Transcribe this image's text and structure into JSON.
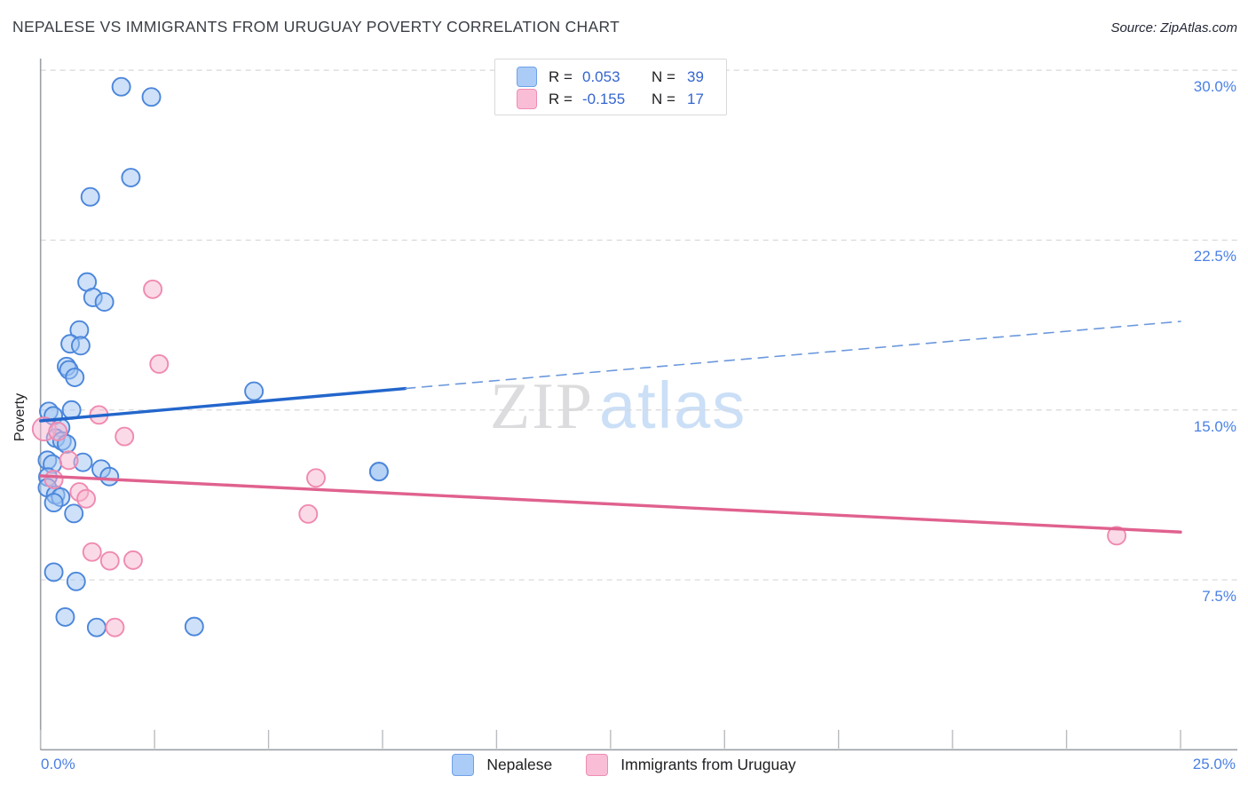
{
  "title": "NEPALESE VS IMMIGRANTS FROM URUGUAY POVERTY CORRELATION CHART",
  "source": "Source: ZipAtlas.com",
  "ylabel": "Poverty",
  "watermark": {
    "zip": "ZIP",
    "atlas": "atlas"
  },
  "legend_box": {
    "rows": [
      {
        "series": "Nepalese",
        "r_label": "R =",
        "r_value": "0.053",
        "n_label": "N =",
        "n_value": "39"
      },
      {
        "series": "Immigrants from Uruguay",
        "r_label": "R =",
        "r_value": "-0.155",
        "n_label": "N =",
        "n_value": "17"
      }
    ]
  },
  "bottom_legend": [
    {
      "label": "Nepalese"
    },
    {
      "label": "Immigrants from Uruguay"
    }
  ],
  "axes": {
    "x_min_label": "0.0%",
    "x_max_label": "25.0%",
    "y_ticks": [
      {
        "value": 30.0,
        "label": "30.0%"
      },
      {
        "value": 22.5,
        "label": "22.5%"
      },
      {
        "value": 15.0,
        "label": "15.0%"
      },
      {
        "value": 7.5,
        "label": "7.5%"
      }
    ],
    "x_tick_values": [
      0,
      2.5,
      5,
      7.5,
      10,
      12.5,
      15,
      17.5,
      20,
      22.5,
      25
    ]
  },
  "colors": {
    "axis_label": "#4a80e4",
    "legend_value": "#3465cf",
    "blue_fill": "#9ec4f2",
    "blue_stroke": "#4b86db",
    "pink_fill": "#f7b6cf",
    "pink_stroke": "#ef8ab0",
    "trend_blue": "#2366cc",
    "trend_pink": "#e0618e",
    "gridline": "#d7d7d9",
    "axis_line": "#9aa0a6",
    "tick_mark": "#b9bcbf"
  },
  "chart_data": {
    "type": "scatter",
    "title": "NEPALESE VS IMMIGRANTS FROM URUGUAY POVERTY CORRELATION CHART",
    "xlabel": "",
    "ylabel": "Poverty",
    "xlim": [
      0,
      25
    ],
    "ylim": [
      0,
      31.2
    ],
    "grid": "horizontal-dashed",
    "legend_position": "bottom-center",
    "series": [
      {
        "name": "Nepalese",
        "R": 0.053,
        "N": 39,
        "points": [
          [
            1.77,
            29.27
          ],
          [
            2.43,
            28.82
          ],
          [
            1.98,
            25.26
          ],
          [
            1.09,
            24.41
          ],
          [
            1.02,
            20.65
          ],
          [
            1.15,
            19.97
          ],
          [
            1.4,
            19.77
          ],
          [
            0.85,
            18.53
          ],
          [
            0.65,
            17.92
          ],
          [
            0.88,
            17.84
          ],
          [
            0.57,
            16.92
          ],
          [
            0.62,
            16.77
          ],
          [
            0.75,
            16.44
          ],
          [
            4.68,
            15.83
          ],
          [
            0.18,
            14.94
          ],
          [
            0.68,
            15.0
          ],
          [
            0.28,
            14.74
          ],
          [
            0.44,
            14.22
          ],
          [
            0.33,
            13.76
          ],
          [
            0.47,
            13.63
          ],
          [
            0.57,
            13.5
          ],
          [
            0.15,
            12.78
          ],
          [
            0.26,
            12.61
          ],
          [
            0.93,
            12.69
          ],
          [
            1.33,
            12.39
          ],
          [
            1.51,
            12.06
          ],
          [
            0.16,
            12.04
          ],
          [
            0.15,
            11.57
          ],
          [
            0.33,
            11.25
          ],
          [
            0.44,
            11.15
          ],
          [
            0.29,
            10.91
          ],
          [
            0.73,
            10.43
          ],
          [
            7.42,
            12.28
          ],
          [
            7.42,
            12.28
          ],
          [
            0.29,
            7.84
          ],
          [
            0.78,
            7.43
          ],
          [
            0.54,
            5.86
          ],
          [
            1.23,
            5.4
          ],
          [
            3.37,
            5.44
          ]
        ]
      },
      {
        "name": "Immigrants from Uruguay",
        "R": -0.155,
        "N": 17,
        "points": [
          [
            2.46,
            20.33
          ],
          [
            2.6,
            17.03
          ],
          [
            1.28,
            14.78
          ],
          [
            0.08,
            14.16,
            13
          ],
          [
            0.38,
            14.05
          ],
          [
            1.84,
            13.83
          ],
          [
            0.62,
            12.78
          ],
          [
            0.29,
            11.93
          ],
          [
            0.85,
            11.38
          ],
          [
            1.0,
            11.08
          ],
          [
            6.04,
            12.0
          ],
          [
            5.87,
            10.41
          ],
          [
            1.13,
            8.73
          ],
          [
            1.52,
            8.34
          ],
          [
            2.03,
            8.37
          ],
          [
            1.63,
            5.4
          ],
          [
            23.6,
            9.45
          ]
        ]
      }
    ],
    "trend_lines": [
      {
        "series": "Nepalese",
        "style": "solid",
        "x1": 0,
        "y1": 14.52,
        "x2": 8,
        "y2": 15.95
      },
      {
        "series": "Nepalese",
        "style": "dashed",
        "x1": 8,
        "y1": 15.95,
        "x2": 25,
        "y2": 18.91
      },
      {
        "series": "Immigrants from Uruguay",
        "style": "solid",
        "x1": 0,
        "y1": 12.09,
        "x2": 25,
        "y2": 9.61
      }
    ]
  }
}
